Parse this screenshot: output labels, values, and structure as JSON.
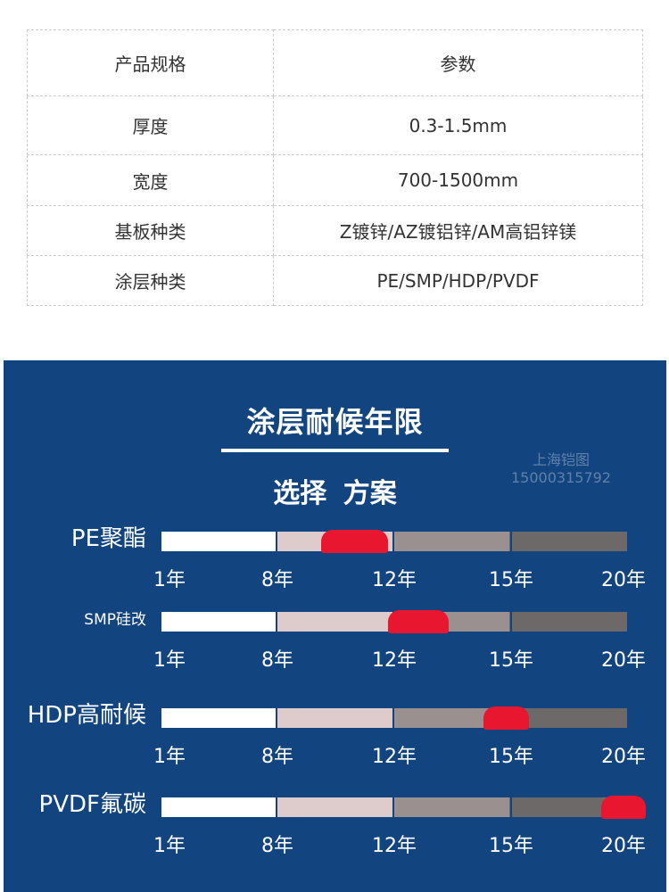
{
  "spec_table": {
    "header": {
      "name": "产品规格",
      "value": "参数"
    },
    "rows": [
      {
        "name": "厚度",
        "value": "0.3-1.5mm"
      },
      {
        "name": "宽度",
        "value": "700-1500mm"
      },
      {
        "name": "基板种类",
        "value": "Z镀锌/AZ镀铝锌/AM高铝锌镁"
      },
      {
        "name": "涂层种类",
        "value": "PE/SMP/HDP/PVDF"
      }
    ]
  },
  "durability": {
    "title": "涂层耐候年限",
    "subtitle": "选择 方案",
    "watermark": {
      "line1": "上海铠图",
      "line2": "15000315792"
    },
    "ticks": [
      "1年",
      "8年",
      "12年",
      "15年",
      "20年"
    ],
    "colors": {
      "panel_bg": "#12447f",
      "segment_1": "#ffffff",
      "segment_2": "#decccc",
      "segment_3": "#9a9090",
      "segment_4": "#6e6969",
      "marker": "#e8162e"
    },
    "rows": [
      {
        "label": "PE聚酯",
        "marker_range_years": [
          9.5,
          11.8
        ]
      },
      {
        "label": "SMP硅改",
        "marker_range_years": [
          11.8,
          13.4
        ]
      },
      {
        "label": "HDP高耐候",
        "marker_range_years": [
          14.3,
          15.8
        ]
      },
      {
        "label": "PVDF氟碳",
        "marker_range_years": [
          19.0,
          21.0
        ]
      }
    ]
  }
}
